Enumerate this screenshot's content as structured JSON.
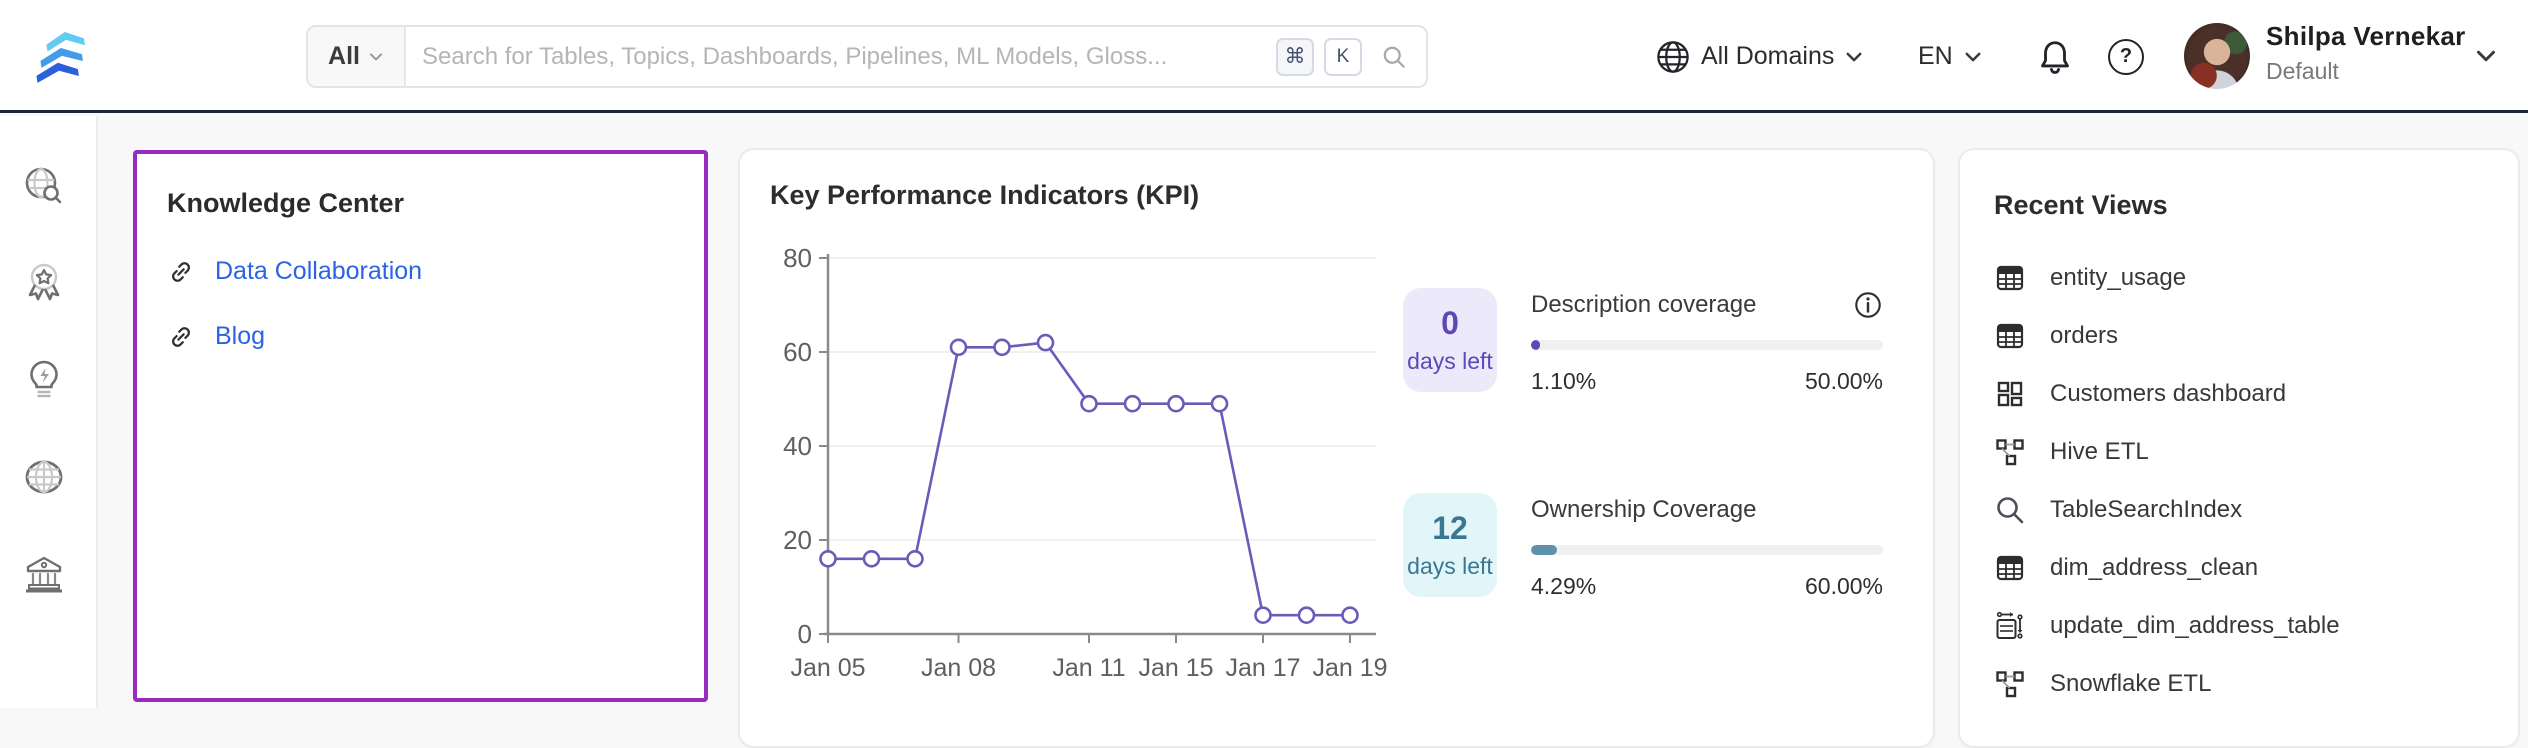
{
  "header": {
    "search": {
      "scope": "All",
      "placeholder": "Search for Tables, Topics, Dashboards, Pipelines, ML Models, Gloss...",
      "shortcut_primary": "⌘",
      "shortcut_secondary": "K"
    },
    "domain_selector": "All Domains",
    "language": "EN",
    "user": {
      "name": "Shilpa Vernekar",
      "role": "Default"
    }
  },
  "sidebar": {
    "items": [
      {
        "icon": "explore-search-icon"
      },
      {
        "icon": "quality-badge-icon"
      },
      {
        "icon": "insights-bulb-icon"
      },
      {
        "icon": "domains-globe-icon"
      },
      {
        "icon": "governance-bank-icon"
      }
    ]
  },
  "knowledge_center": {
    "title": "Knowledge Center",
    "links": [
      {
        "label": "Data Collaboration"
      },
      {
        "label": "Blog"
      }
    ]
  },
  "kpi_panel": {
    "title": "Key Performance Indicators (KPI)",
    "cards": [
      {
        "days_left_value": "0",
        "days_left_label": "days left",
        "metric": "Description coverage",
        "current": "1.10%",
        "target": "50.00%",
        "progress_percent": 1.1,
        "theme": "purple",
        "info_icon": true
      },
      {
        "days_left_value": "12",
        "days_left_label": "days left",
        "metric": "Ownership Coverage",
        "current": "4.29%",
        "target": "60.00%",
        "progress_percent": 4.29,
        "theme": "teal",
        "info_icon": false
      }
    ]
  },
  "chart_data": {
    "type": "line",
    "title": "Key Performance Indicators (KPI)",
    "num_points": 13,
    "values": [
      16,
      16,
      16,
      61,
      61,
      62,
      49,
      49,
      49,
      49,
      4,
      4,
      4
    ],
    "x_tick_labels": [
      "Jan 05",
      "Jan 08",
      "Jan 11",
      "Jan 15",
      "Jan 17",
      "Jan 19"
    ],
    "x_tick_indices": [
      0,
      3,
      6,
      8,
      10,
      12
    ],
    "y_ticks": [
      0,
      20,
      40,
      60,
      80
    ],
    "ylim": [
      0,
      80
    ],
    "grid": true,
    "legend": false,
    "line_color": "#685CB8",
    "marker": "open-circle"
  },
  "recent_views": {
    "title": "Recent Views",
    "items": [
      {
        "label": "entity_usage",
        "icon": "table-icon"
      },
      {
        "label": "orders",
        "icon": "table-icon"
      },
      {
        "label": "Customers dashboard",
        "icon": "dashboard-icon"
      },
      {
        "label": "Hive ETL",
        "icon": "pipeline-icon"
      },
      {
        "label": "TableSearchIndex",
        "icon": "search-index-icon"
      },
      {
        "label": "dim_address_clean",
        "icon": "table-icon"
      },
      {
        "label": "update_dim_address_table",
        "icon": "stored-procedure-icon"
      },
      {
        "label": "Snowflake ETL",
        "icon": "pipeline-icon"
      }
    ]
  },
  "colors": {
    "navbar_border": "#1B2540",
    "knowledge_center_border": "#9A2BC1",
    "link_blue": "#2A63E5",
    "chart_line": "#685CB8",
    "badge_purple_bg": "#ECE9FB",
    "badge_purple_text": "#5E48B5",
    "badge_teal_bg": "#E2F5F9",
    "badge_teal_text": "#3A7891",
    "progress_teal": "#5C93AB",
    "progress_track": "#F0F0F0"
  }
}
